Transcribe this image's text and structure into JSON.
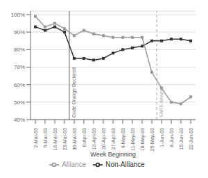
{
  "chart_data": {
    "type": "line",
    "x_label": "Week Beginning",
    "categories": [
      "2-Mar-03",
      "9-Mar-03",
      "16-Mar-03",
      "23-Mar-03",
      "30-Mar-03",
      "6-Apr-03",
      "13-Apr-03",
      "20-Apr-03",
      "27-Apr-03",
      "4-May-03",
      "11-May-03",
      "18-May-03",
      "25-May-03",
      "1-Jun-03",
      "8-Jun-03",
      "15-Jun-03",
      "22-Jun-03"
    ],
    "series": [
      {
        "name": "Non-Alliance",
        "color": "#333333",
        "marker": "square",
        "values": [
          93,
          91,
          93,
          90,
          75,
          75,
          74,
          75,
          78,
          80,
          81,
          82,
          85,
          85,
          86,
          86,
          85
        ]
      },
      {
        "name": "Alliance",
        "color": "#999999",
        "marker": "square",
        "values": [
          99,
          93,
          95,
          92,
          88,
          91,
          89,
          88,
          87,
          87,
          87,
          87,
          67,
          58,
          50,
          49,
          53
        ]
      }
    ],
    "ylim": [
      40,
      102
    ],
    "yticks": [
      {
        "value": 40,
        "label": "40%"
      },
      {
        "value": 50,
        "label": "50%"
      },
      {
        "value": 60,
        "label": "60%"
      },
      {
        "value": 70,
        "label": "70%"
      },
      {
        "value": 80,
        "label": "80%"
      },
      {
        "value": 90,
        "label": "90%"
      },
      {
        "value": 100,
        "label": "100%"
      }
    ],
    "grid": true,
    "legend": "bottom",
    "annotations": [
      {
        "text": "Code Orange Declared",
        "x": 3.5,
        "color": "#666666",
        "line_style": "solid"
      },
      {
        "text": "SARS Alliance",
        "x": 12.5,
        "color": "#aaaaaa",
        "line_style": "dashed"
      }
    ]
  }
}
